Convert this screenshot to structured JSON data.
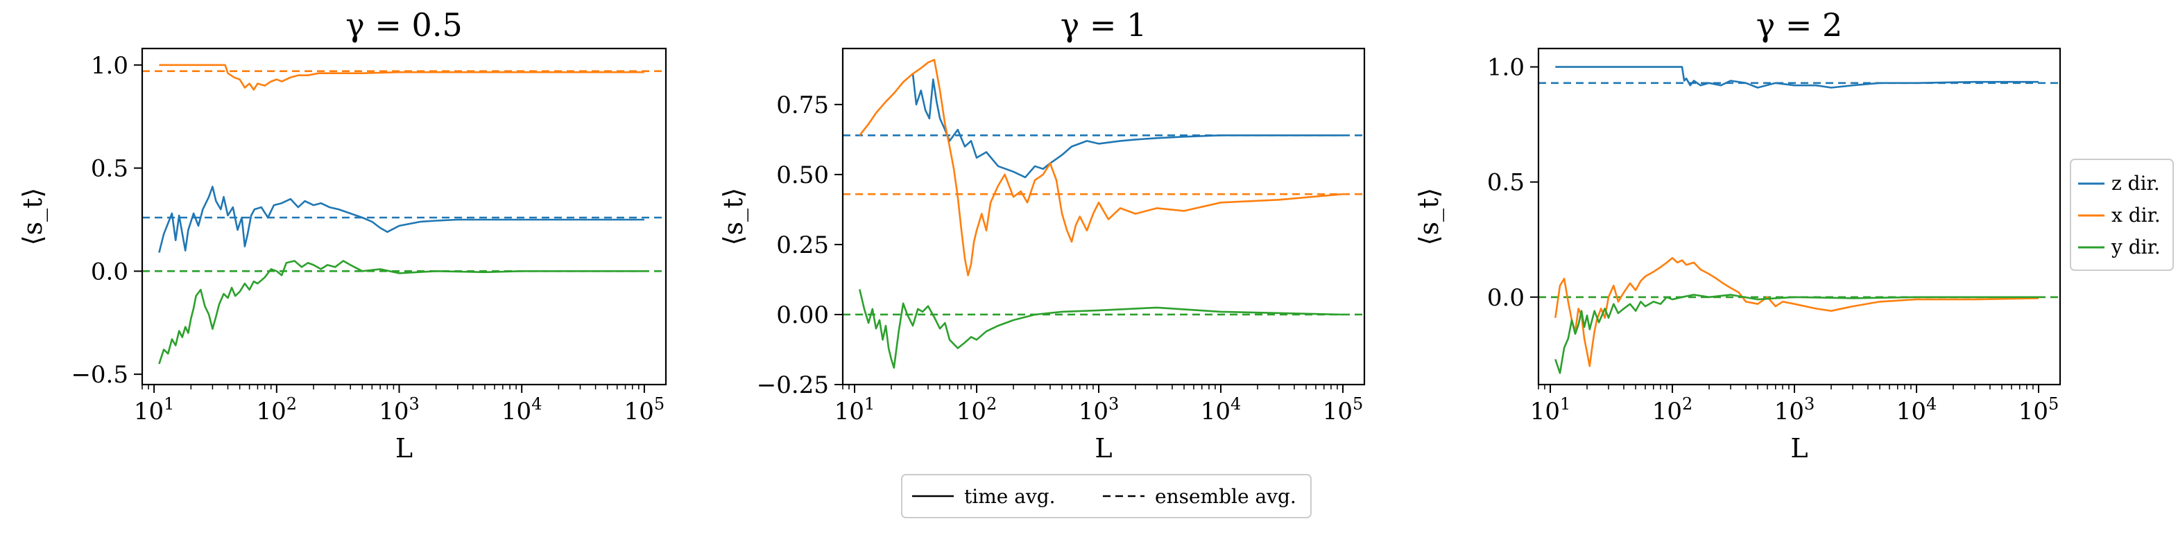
{
  "figure": {
    "colors": {
      "z": "#1f77b4",
      "x": "#ff7f0e",
      "y": "#2ca02c"
    },
    "series_legend": [
      {
        "key": "z",
        "label": "z dir."
      },
      {
        "key": "x",
        "label": "x dir."
      },
      {
        "key": "y",
        "label": "y dir."
      }
    ],
    "style_legend": {
      "solid": "time avg.",
      "dashed": "ensemble avg."
    }
  },
  "chart_data": [
    {
      "type": "line",
      "title": "γ = 0.5",
      "xlabel": "L",
      "ylabel": "⟨s_t⟩",
      "xscale": "log",
      "xlim": [
        8,
        150000
      ],
      "ylim": [
        -0.55,
        1.08
      ],
      "yticks": [
        -0.5,
        0.0,
        0.5,
        1.0
      ],
      "ytick_labels": [
        "−0.5",
        "0.0",
        "0.5",
        "1.0"
      ],
      "ensemble": {
        "z": 0.26,
        "x": 0.97,
        "y": 0.0
      },
      "series": [
        {
          "name": "z dir.",
          "key": "z",
          "x": [
            11,
            12,
            14,
            15,
            16,
            18,
            19,
            21,
            23,
            25,
            28,
            30,
            32,
            35,
            37,
            40,
            44,
            48,
            52,
            55,
            58,
            62,
            66,
            75,
            85,
            95,
            110,
            130,
            150,
            170,
            200,
            230,
            270,
            320,
            400,
            500,
            600,
            700,
            800,
            1000,
            1500,
            2000,
            3000,
            5000,
            10000,
            30000,
            100000
          ],
          "y": [
            0.09,
            0.18,
            0.28,
            0.15,
            0.27,
            0.1,
            0.2,
            0.28,
            0.22,
            0.3,
            0.36,
            0.41,
            0.34,
            0.3,
            0.36,
            0.27,
            0.31,
            0.2,
            0.26,
            0.12,
            0.18,
            0.27,
            0.3,
            0.31,
            0.26,
            0.32,
            0.33,
            0.35,
            0.31,
            0.34,
            0.32,
            0.33,
            0.31,
            0.3,
            0.28,
            0.26,
            0.24,
            0.21,
            0.19,
            0.22,
            0.24,
            0.245,
            0.25,
            0.25,
            0.25,
            0.25,
            0.25
          ]
        },
        {
          "name": "x dir.",
          "key": "x",
          "x": [
            11,
            15,
            20,
            25,
            30,
            35,
            38,
            40,
            45,
            50,
            55,
            60,
            65,
            70,
            80,
            90,
            100,
            110,
            130,
            150,
            180,
            220,
            300,
            500,
            1000,
            3000,
            10000,
            100000
          ],
          "y": [
            1.0,
            1.0,
            1.0,
            1.0,
            1.0,
            1.0,
            1.0,
            0.96,
            0.94,
            0.93,
            0.89,
            0.91,
            0.88,
            0.91,
            0.9,
            0.92,
            0.93,
            0.92,
            0.94,
            0.95,
            0.95,
            0.96,
            0.96,
            0.96,
            0.965,
            0.965,
            0.965,
            0.965
          ]
        },
        {
          "name": "y dir.",
          "key": "y",
          "x": [
            11,
            12,
            13,
            14,
            15,
            16,
            17,
            18,
            19,
            20,
            21,
            22,
            24,
            26,
            28,
            30,
            32,
            34,
            37,
            40,
            43,
            46,
            50,
            55,
            60,
            65,
            70,
            80,
            90,
            100,
            110,
            120,
            140,
            160,
            180,
            200,
            230,
            260,
            300,
            350,
            400,
            500,
            700,
            1000,
            2000,
            5000,
            10000,
            100000
          ],
          "y": [
            -0.45,
            -0.38,
            -0.4,
            -0.33,
            -0.36,
            -0.29,
            -0.32,
            -0.27,
            -0.3,
            -0.23,
            -0.18,
            -0.12,
            -0.09,
            -0.17,
            -0.21,
            -0.28,
            -0.22,
            -0.16,
            -0.11,
            -0.13,
            -0.08,
            -0.12,
            -0.1,
            -0.06,
            -0.09,
            -0.05,
            -0.06,
            -0.03,
            0.01,
            0.0,
            -0.02,
            0.04,
            0.05,
            0.02,
            0.04,
            0.03,
            0.01,
            0.03,
            0.02,
            0.05,
            0.03,
            0.0,
            0.01,
            -0.01,
            0.0,
            -0.005,
            0.0,
            0.0
          ]
        }
      ]
    },
    {
      "type": "line",
      "title": "γ = 1",
      "xlabel": "L",
      "ylabel": "⟨s_t⟩",
      "xscale": "log",
      "xlim": [
        8,
        150000
      ],
      "ylim": [
        -0.25,
        0.95
      ],
      "yticks": [
        -0.25,
        0.0,
        0.25,
        0.5,
        0.75
      ],
      "ytick_labels": [
        "−0.25",
        "0.00",
        "0.25",
        "0.50",
        "0.75"
      ],
      "ensemble": {
        "z": 0.64,
        "x": 0.43,
        "y": 0.0
      },
      "series": [
        {
          "name": "z dir.",
          "key": "z",
          "x": [
            30,
            32,
            35,
            38,
            41,
            44,
            47,
            50,
            55,
            60,
            70,
            80,
            90,
            100,
            120,
            150,
            200,
            250,
            300,
            350,
            400,
            500,
            600,
            800,
            1000,
            1500,
            2000,
            3000,
            5000,
            10000,
            30000,
            100000
          ],
          "y": [
            0.86,
            0.75,
            0.8,
            0.73,
            0.7,
            0.84,
            0.76,
            0.7,
            0.66,
            0.62,
            0.66,
            0.6,
            0.62,
            0.56,
            0.58,
            0.53,
            0.51,
            0.49,
            0.53,
            0.52,
            0.54,
            0.57,
            0.6,
            0.62,
            0.61,
            0.62,
            0.625,
            0.63,
            0.635,
            0.64,
            0.64,
            0.64
          ]
        },
        {
          "name": "x dir.",
          "key": "x",
          "x": [
            11,
            13,
            15,
            18,
            21,
            25,
            30,
            35,
            40,
            45,
            50,
            55,
            60,
            65,
            70,
            75,
            80,
            85,
            90,
            95,
            100,
            110,
            120,
            130,
            150,
            170,
            200,
            230,
            260,
            300,
            350,
            400,
            450,
            500,
            550,
            600,
            650,
            700,
            800,
            900,
            1000,
            1200,
            1500,
            2000,
            3000,
            5000,
            10000,
            30000,
            100000
          ],
          "y": [
            0.64,
            0.68,
            0.72,
            0.76,
            0.79,
            0.83,
            0.86,
            0.88,
            0.9,
            0.91,
            0.8,
            0.68,
            0.6,
            0.52,
            0.42,
            0.3,
            0.2,
            0.14,
            0.18,
            0.26,
            0.3,
            0.36,
            0.3,
            0.4,
            0.46,
            0.5,
            0.42,
            0.44,
            0.4,
            0.48,
            0.5,
            0.54,
            0.48,
            0.36,
            0.3,
            0.26,
            0.32,
            0.35,
            0.3,
            0.36,
            0.4,
            0.34,
            0.38,
            0.36,
            0.38,
            0.37,
            0.4,
            0.41,
            0.43
          ]
        },
        {
          "name": "y dir.",
          "key": "y",
          "x": [
            11,
            12,
            13,
            14,
            15,
            16,
            17,
            18,
            19,
            20,
            21,
            23,
            25,
            27,
            30,
            33,
            36,
            40,
            45,
            50,
            55,
            60,
            70,
            80,
            90,
            100,
            120,
            150,
            200,
            300,
            500,
            1000,
            3000,
            10000,
            100000
          ],
          "y": [
            0.09,
            0.02,
            -0.03,
            0.02,
            -0.05,
            -0.02,
            -0.09,
            -0.04,
            -0.12,
            -0.16,
            -0.19,
            -0.06,
            0.04,
            0.0,
            -0.04,
            0.02,
            0.01,
            0.03,
            -0.01,
            -0.05,
            -0.03,
            -0.09,
            -0.12,
            -0.1,
            -0.08,
            -0.09,
            -0.06,
            -0.04,
            -0.02,
            0.0,
            0.01,
            0.015,
            0.025,
            0.01,
            0.0
          ]
        }
      ]
    },
    {
      "type": "line",
      "title": "γ = 2",
      "xlabel": "L",
      "ylabel": "⟨s_t⟩",
      "xscale": "log",
      "xlim": [
        8,
        150000
      ],
      "ylim": [
        -0.38,
        1.08
      ],
      "yticks": [
        0.0,
        0.5,
        1.0
      ],
      "ytick_labels": [
        "0.0",
        "0.5",
        "1.0"
      ],
      "ensemble": {
        "z": 0.93,
        "x": 0.0,
        "y": 0.0
      },
      "series": [
        {
          "name": "z dir.",
          "key": "z",
          "x": [
            11,
            20,
            50,
            100,
            120,
            125,
            130,
            140,
            150,
            170,
            200,
            250,
            300,
            400,
            500,
            700,
            1000,
            1500,
            2000,
            3000,
            5000,
            10000,
            30000,
            100000
          ],
          "y": [
            1.0,
            1.0,
            1.0,
            1.0,
            1.0,
            0.94,
            0.95,
            0.92,
            0.94,
            0.92,
            0.93,
            0.92,
            0.94,
            0.93,
            0.91,
            0.93,
            0.92,
            0.92,
            0.91,
            0.92,
            0.93,
            0.93,
            0.935,
            0.935
          ]
        },
        {
          "name": "x dir.",
          "key": "x",
          "x": [
            11,
            12,
            13,
            14,
            15,
            16,
            17,
            18,
            19,
            20,
            21,
            22,
            23,
            24,
            26,
            28,
            30,
            33,
            36,
            40,
            45,
            50,
            55,
            60,
            70,
            80,
            90,
            100,
            110,
            120,
            130,
            150,
            170,
            200,
            230,
            260,
            300,
            350,
            400,
            500,
            600,
            700,
            800,
            1000,
            1500,
            2000,
            3000,
            5000,
            10000,
            30000,
            100000
          ],
          "y": [
            -0.09,
            0.05,
            0.08,
            -0.02,
            -0.1,
            -0.15,
            -0.05,
            -0.08,
            -0.18,
            -0.24,
            -0.3,
            -0.22,
            -0.15,
            -0.1,
            -0.05,
            -0.09,
            0.0,
            0.05,
            -0.02,
            0.02,
            0.06,
            0.03,
            0.07,
            0.09,
            0.11,
            0.13,
            0.15,
            0.17,
            0.15,
            0.16,
            0.14,
            0.15,
            0.12,
            0.1,
            0.08,
            0.06,
            0.04,
            0.02,
            -0.02,
            -0.03,
            0.0,
            -0.04,
            -0.02,
            -0.03,
            -0.05,
            -0.06,
            -0.04,
            -0.02,
            -0.01,
            -0.01,
            -0.005
          ]
        },
        {
          "name": "y dir.",
          "key": "y",
          "x": [
            11,
            12,
            13,
            14,
            15,
            16,
            17,
            18,
            19,
            20,
            21,
            23,
            25,
            28,
            30,
            33,
            36,
            40,
            45,
            50,
            55,
            60,
            70,
            80,
            90,
            100,
            120,
            150,
            200,
            300,
            500,
            1000,
            3000,
            10000,
            100000
          ],
          "y": [
            -0.27,
            -0.33,
            -0.22,
            -0.18,
            -0.1,
            -0.16,
            -0.12,
            -0.06,
            -0.13,
            -0.08,
            -0.14,
            -0.06,
            -0.11,
            -0.05,
            -0.09,
            -0.03,
            -0.07,
            -0.05,
            -0.03,
            -0.06,
            -0.02,
            -0.04,
            -0.02,
            -0.03,
            0.0,
            -0.01,
            0.0,
            0.01,
            0.0,
            0.01,
            -0.01,
            0.0,
            -0.005,
            0.0,
            0.0
          ]
        }
      ]
    }
  ]
}
